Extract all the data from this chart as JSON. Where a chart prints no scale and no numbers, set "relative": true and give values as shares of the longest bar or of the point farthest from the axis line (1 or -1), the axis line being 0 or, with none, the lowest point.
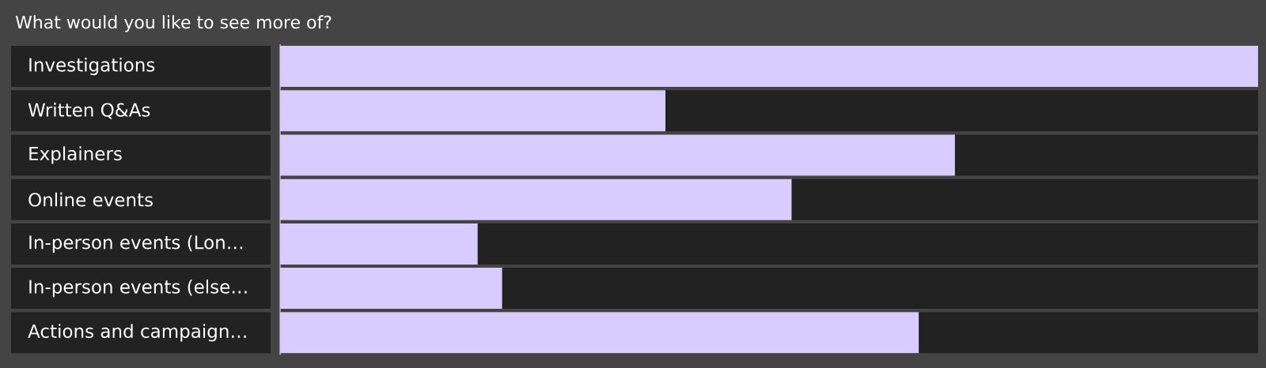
{
  "chart_data": {
    "type": "bar",
    "orientation": "horizontal",
    "relative": true,
    "title": "What would you like to see more of?",
    "categories": [
      "Investigations",
      "Written Q&As",
      "Explainers",
      "Online events",
      "In-person events (Lon…",
      "In-person events (else…",
      "Actions and campaign…"
    ],
    "values": [
      1,
      0.394,
      0.69,
      0.523,
      0.202,
      0.227,
      0.653
    ],
    "color": "#d8cbfd"
  }
}
